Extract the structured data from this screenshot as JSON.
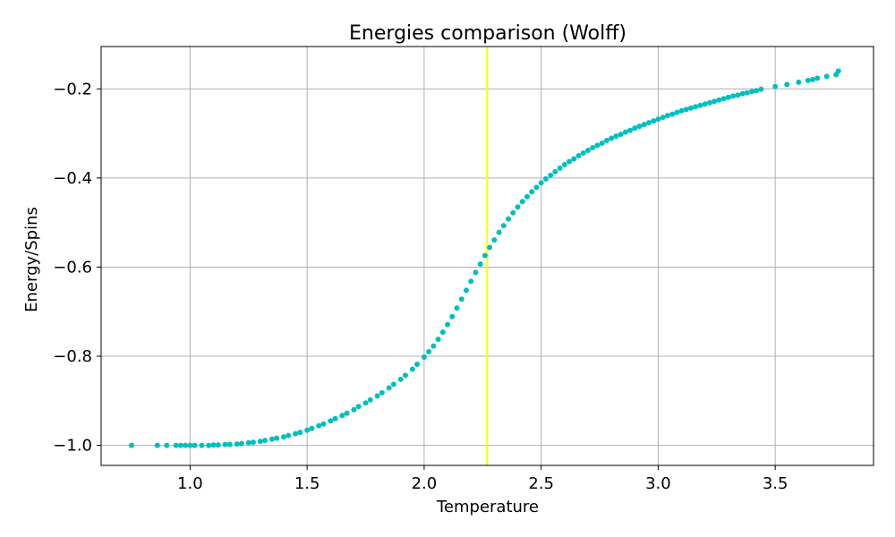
{
  "chart_data": {
    "type": "scatter",
    "title": "Energies comparison (Wolff)",
    "xlabel": "Temperature",
    "ylabel": "Energy/Spins",
    "xlim": [
      0.62,
      3.92
    ],
    "ylim": [
      -1.045,
      -0.105
    ],
    "xticks": [
      1.0,
      1.5,
      2.0,
      2.5,
      3.0,
      3.5
    ],
    "xtick_labels": [
      "1.0",
      "1.5",
      "2.0",
      "2.5",
      "3.0",
      "3.5"
    ],
    "yticks": [
      -1.0,
      -0.8,
      -0.6,
      -0.4,
      -0.2
    ],
    "ytick_labels": [
      "−1.0",
      "−0.8",
      "−0.6",
      "−0.4",
      "−0.2"
    ],
    "grid": true,
    "point_color": "#00bfbf",
    "vline": {
      "x": 2.269,
      "color": "#ffff00"
    },
    "series": [
      {
        "x": [
          0.75,
          0.86,
          0.9,
          0.94,
          0.96,
          0.98,
          1.0,
          1.02,
          1.05,
          1.08,
          1.1,
          1.12,
          1.15,
          1.17,
          1.2,
          1.22,
          1.25,
          1.27,
          1.3,
          1.32,
          1.35,
          1.37,
          1.4,
          1.42,
          1.45,
          1.47,
          1.5,
          1.52,
          1.55,
          1.57,
          1.6,
          1.62,
          1.65,
          1.67,
          1.7,
          1.72,
          1.75,
          1.77,
          1.8,
          1.82,
          1.85,
          1.87,
          1.9,
          1.92,
          1.95,
          1.97,
          2.0,
          2.02,
          2.04,
          2.06,
          2.08,
          2.1,
          2.12,
          2.14,
          2.16,
          2.18,
          2.2,
          2.22,
          2.24,
          2.26,
          2.28,
          2.3,
          2.32,
          2.34,
          2.36,
          2.38,
          2.4,
          2.42,
          2.44,
          2.46,
          2.48,
          2.5,
          2.52,
          2.54,
          2.56,
          2.58,
          2.6,
          2.62,
          2.64,
          2.66,
          2.68,
          2.7,
          2.72,
          2.74,
          2.76,
          2.78,
          2.8,
          2.82,
          2.84,
          2.86,
          2.88,
          2.9,
          2.92,
          2.94,
          2.96,
          2.98,
          3.0,
          3.02,
          3.04,
          3.06,
          3.08,
          3.1,
          3.12,
          3.14,
          3.16,
          3.18,
          3.2,
          3.22,
          3.24,
          3.26,
          3.28,
          3.3,
          3.32,
          3.34,
          3.36,
          3.38,
          3.4,
          3.42,
          3.44,
          3.5,
          3.55,
          3.6,
          3.64,
          3.66,
          3.68,
          3.72,
          3.76,
          3.77
        ],
        "y": [
          -1.0,
          -1.0,
          -1.0,
          -1.0,
          -1.0,
          -1.0,
          -1.0,
          -1.0,
          -1.0,
          -1.0,
          -0.999,
          -0.999,
          -0.998,
          -0.998,
          -0.997,
          -0.996,
          -0.994,
          -0.993,
          -0.991,
          -0.989,
          -0.986,
          -0.984,
          -0.981,
          -0.978,
          -0.974,
          -0.971,
          -0.966,
          -0.962,
          -0.956,
          -0.952,
          -0.945,
          -0.94,
          -0.933,
          -0.928,
          -0.92,
          -0.913,
          -0.905,
          -0.898,
          -0.889,
          -0.882,
          -0.871,
          -0.863,
          -0.852,
          -0.843,
          -0.829,
          -0.818,
          -0.802,
          -0.79,
          -0.777,
          -0.762,
          -0.746,
          -0.729,
          -0.711,
          -0.692,
          -0.672,
          -0.652,
          -0.632,
          -0.612,
          -0.593,
          -0.574,
          -0.556,
          -0.539,
          -0.522,
          -0.507,
          -0.492,
          -0.478,
          -0.465,
          -0.453,
          -0.442,
          -0.431,
          -0.421,
          -0.411,
          -0.402,
          -0.394,
          -0.386,
          -0.378,
          -0.37,
          -0.363,
          -0.357,
          -0.35,
          -0.344,
          -0.338,
          -0.332,
          -0.327,
          -0.322,
          -0.316,
          -0.311,
          -0.306,
          -0.302,
          -0.297,
          -0.293,
          -0.288,
          -0.284,
          -0.28,
          -0.276,
          -0.272,
          -0.268,
          -0.264,
          -0.26,
          -0.257,
          -0.253,
          -0.249,
          -0.246,
          -0.243,
          -0.24,
          -0.237,
          -0.234,
          -0.231,
          -0.228,
          -0.225,
          -0.222,
          -0.219,
          -0.216,
          -0.214,
          -0.211,
          -0.209,
          -0.206,
          -0.204,
          -0.201,
          -0.195,
          -0.19,
          -0.185,
          -0.181,
          -0.179,
          -0.176,
          -0.172,
          -0.168,
          -0.16
        ]
      }
    ]
  }
}
